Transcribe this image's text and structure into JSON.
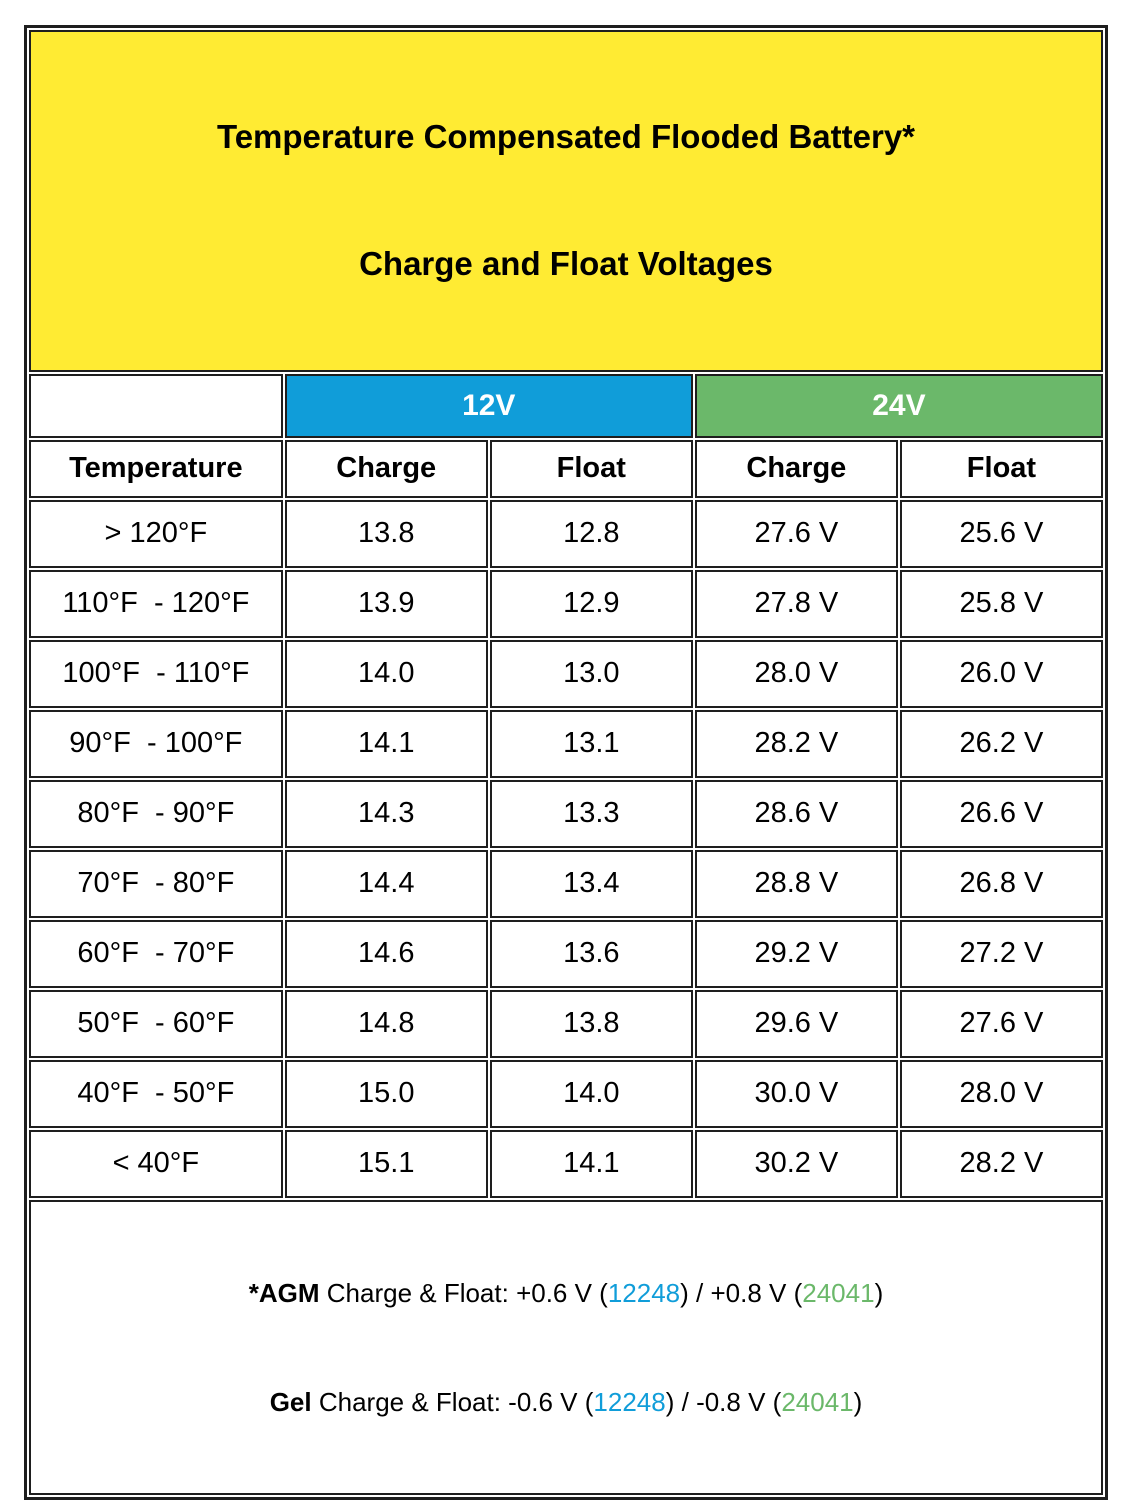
{
  "title": {
    "line1": "Temperature Compensated Flooded Battery*",
    "line2": "Charge and Float Voltages"
  },
  "voltage_groups": {
    "v12": "12V",
    "v24": "24V"
  },
  "column_headers": {
    "temperature": "Temperature",
    "charge": "Charge",
    "float": "Float"
  },
  "rows": [
    {
      "temperature": "> 120°F",
      "charge_12v": "13.8",
      "float_12v": "12.8",
      "charge_24v": "27.6 V",
      "float_24v": "25.6 V"
    },
    {
      "temperature": "110°F  - 120°F",
      "charge_12v": "13.9",
      "float_12v": "12.9",
      "charge_24v": "27.8 V",
      "float_24v": "25.8 V"
    },
    {
      "temperature": "100°F  - 110°F",
      "charge_12v": "14.0",
      "float_12v": "13.0",
      "charge_24v": "28.0 V",
      "float_24v": "26.0 V"
    },
    {
      "temperature": "90°F  - 100°F",
      "charge_12v": "14.1",
      "float_12v": "13.1",
      "charge_24v": "28.2 V",
      "float_24v": "26.2 V"
    },
    {
      "temperature": "80°F  - 90°F",
      "charge_12v": "14.3",
      "float_12v": "13.3",
      "charge_24v": "28.6 V",
      "float_24v": "26.6 V"
    },
    {
      "temperature": "70°F  - 80°F",
      "charge_12v": "14.4",
      "float_12v": "13.4",
      "charge_24v": "28.8 V",
      "float_24v": "26.8 V"
    },
    {
      "temperature": "60°F  - 70°F",
      "charge_12v": "14.6",
      "float_12v": "13.6",
      "charge_24v": "29.2 V",
      "float_24v": "27.2 V"
    },
    {
      "temperature": "50°F  - 60°F",
      "charge_12v": "14.8",
      "float_12v": "13.8",
      "charge_24v": "29.6 V",
      "float_24v": "27.6 V"
    },
    {
      "temperature": "40°F  - 50°F",
      "charge_12v": "15.0",
      "float_12v": "14.0",
      "charge_24v": "30.0 V",
      "float_24v": "28.0 V"
    },
    {
      "temperature": "< 40°F",
      "charge_12v": "15.1",
      "float_12v": "14.1",
      "charge_24v": "30.2 V",
      "float_24v": "28.2 V"
    }
  ],
  "footnote": {
    "agm": {
      "label": "*AGM",
      "text1": " Charge & Float: +0.6 V (",
      "model_12v": "12248",
      "text2": ") / +0.8 V (",
      "model_24v": "24041",
      "text3": ")"
    },
    "gel": {
      "label": "Gel",
      "text1": " Charge & Float: -0.6 V (",
      "model_12v": "12248",
      "text2": ") / -0.8 V (",
      "model_24v": "24041",
      "text3": ")"
    }
  },
  "colors": {
    "title_bg": "#FFEB33",
    "v12_header": "#109DD9",
    "v24_header": "#6BB86A",
    "border": "#1E1E1E"
  }
}
